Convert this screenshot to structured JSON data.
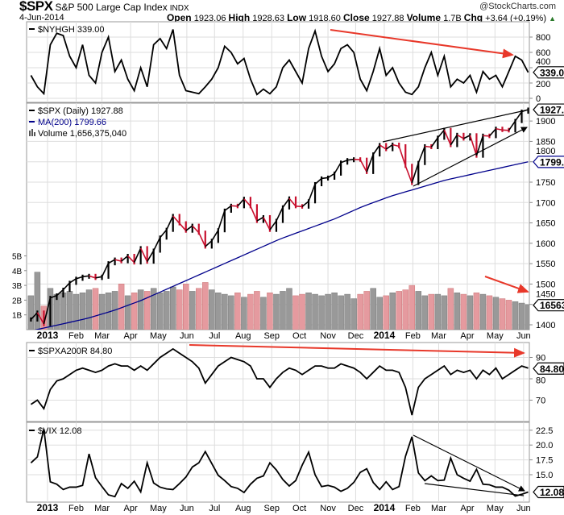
{
  "header": {
    "symbol": "$SPX",
    "name": "S&P 500 Large Cap Index",
    "exchange": "INDX",
    "brand": "@StockCharts.com",
    "date": "4-Jun-2014",
    "open_label": "Open",
    "open": "1923.06",
    "high_label": "High",
    "high": "1928.63",
    "low_label": "Low",
    "low": "1918.60",
    "close_label": "Close",
    "close": "1927.88",
    "volume_label": "Volume",
    "volume": "1.7B",
    "chg_label": "Chg",
    "chg": "+3.64 (+0.19%)",
    "chg_icon": "up-triangle-icon"
  },
  "colors": {
    "price_up": "#000000",
    "price_down": "#c8102e",
    "ma": "#00008b",
    "volume_up": "#999999",
    "volume_down": "#e59a9f",
    "annotation_red": "#e8382a",
    "grid": "#dddddd"
  },
  "chart_data": {
    "type": "line",
    "start_date": "2012-12-14",
    "interval_days": 7,
    "month_labels": [
      "2013",
      "Feb",
      "Mar",
      "Apr",
      "May",
      "Jun",
      "Jul",
      "Aug",
      "Sep",
      "Oct",
      "Nov",
      "Dec",
      "2014",
      "Feb",
      "Mar",
      "Apr",
      "May",
      "Jun"
    ],
    "panels": [
      {
        "id": "nyhgh",
        "legend": "$NYHGH 339.00",
        "last_value": "339.00",
        "yticks": [
          "0",
          "200",
          "400",
          "600",
          "800"
        ],
        "ytick_values": [
          0,
          200,
          400,
          600,
          800
        ],
        "values": [
          300,
          150,
          60,
          700,
          850,
          820,
          550,
          400,
          700,
          300,
          200,
          600,
          800,
          350,
          500,
          250,
          100,
          400,
          150,
          700,
          780,
          650,
          900,
          300,
          100,
          80,
          60,
          150,
          250,
          400,
          680,
          600,
          450,
          520,
          250,
          50,
          120,
          60,
          150,
          400,
          500,
          350,
          200,
          650,
          880,
          550,
          350,
          450,
          650,
          700,
          600,
          250,
          100,
          350,
          650,
          300,
          400,
          200,
          80,
          50,
          150,
          400,
          600,
          300,
          550,
          150,
          250,
          200,
          300,
          80,
          350,
          250,
          300,
          150,
          350,
          550,
          500,
          339
        ]
      },
      {
        "id": "spx",
        "legend": "$SPX (Daily) 1927.88",
        "ma_legend": "MA(200) 1799.66",
        "volume_legend": "Volume 1,656,375,040",
        "last_value": "1927.88",
        "ma_last_value": "1799.66",
        "volume_last_value": "1656375",
        "yticks": [
          "1400",
          "1450",
          "1500",
          "1550",
          "1600",
          "1650",
          "1700",
          "1750",
          "1800",
          "1850",
          "1900"
        ],
        "ytick_values": [
          1400,
          1450,
          1500,
          1550,
          1600,
          1650,
          1700,
          1750,
          1800,
          1850,
          1900
        ],
        "volume_ticks": [
          "1B",
          "2B",
          "3B",
          "4B",
          "5B"
        ],
        "volume_tick_values": [
          1,
          2,
          3,
          4,
          5
        ],
        "values": [
          1413,
          1430,
          1402,
          1466,
          1472,
          1486,
          1503,
          1513,
          1518,
          1520,
          1515,
          1518,
          1551,
          1560,
          1556,
          1569,
          1553,
          1588,
          1555,
          1582,
          1614,
          1633,
          1667,
          1649,
          1631,
          1643,
          1626,
          1592,
          1606,
          1632,
          1680,
          1692,
          1691,
          1709,
          1691,
          1655,
          1664,
          1633,
          1655,
          1688,
          1710,
          1691,
          1690,
          1703,
          1745,
          1759,
          1761,
          1771,
          1798,
          1804,
          1806,
          1805,
          1775,
          1818,
          1841,
          1831,
          1842,
          1838,
          1790,
          1748,
          1797,
          1838,
          1836,
          1859,
          1878,
          1841,
          1866,
          1857,
          1865,
          1815,
          1864,
          1863,
          1881,
          1878,
          1877,
          1900,
          1923,
          1928
        ],
        "ma200": [
          1385,
          1400,
          1415,
          1435,
          1460,
          1490,
          1520,
          1550,
          1580,
          1610,
          1635,
          1660,
          1690,
          1715,
          1735,
          1755,
          1770,
          1785,
          1800
        ],
        "volume_billions": [
          2.3,
          3.9,
          1.6,
          2.8,
          2.4,
          2.5,
          2.6,
          2.4,
          2.5,
          2.7,
          2.8,
          2.4,
          2.5,
          2.6,
          3.1,
          2.3,
          2.5,
          2.7,
          2.6,
          2.8,
          2.5,
          2.6,
          2.9,
          2.7,
          3.1,
          2.6,
          2.8,
          3.2,
          2.7,
          2.5,
          2.4,
          2.3,
          2.5,
          2.2,
          2.4,
          2.6,
          2.2,
          2.5,
          2.4,
          2.6,
          2.8,
          2.3,
          2.4,
          2.5,
          2.4,
          2.3,
          2.4,
          2.5,
          2.3,
          2.4,
          2.1,
          2.4,
          2.6,
          2.8,
          2.2,
          2.3,
          2.5,
          2.6,
          2.7,
          3.0,
          2.6,
          2.3,
          2.4,
          2.4,
          2.3,
          2.8,
          2.5,
          2.4,
          2.3,
          2.5,
          2.4,
          2.3,
          2.2,
          2.1,
          2.0,
          1.9,
          1.8,
          1.7
        ]
      },
      {
        "id": "spxa200r",
        "legend": "$SPXA200R 84.80",
        "last_value": "84.80",
        "yticks": [
          "70",
          "80",
          "90"
        ],
        "ytick_values": [
          70,
          80,
          90
        ],
        "values": [
          68,
          70,
          66,
          75,
          79,
          80,
          82,
          84,
          85,
          84,
          83,
          84,
          86,
          87,
          86,
          86,
          84,
          86,
          84,
          87,
          90,
          92,
          94,
          92,
          90,
          88,
          85,
          78,
          82,
          86,
          88,
          90,
          89,
          88,
          86,
          80,
          80,
          76,
          80,
          83,
          85,
          84,
          82,
          84,
          86,
          86,
          85,
          85,
          87,
          86,
          85,
          83,
          80,
          83,
          86,
          84,
          84,
          83,
          76,
          63,
          76,
          80,
          82,
          84,
          86,
          82,
          84,
          83,
          84,
          80,
          84,
          82,
          85,
          80,
          82,
          84,
          86,
          85
        ]
      },
      {
        "id": "vix",
        "legend": "$VIX 12.08",
        "last_value": "12.08",
        "yticks": [
          "15.0",
          "17.5",
          "20.0",
          "22.5"
        ],
        "ytick_values": [
          15,
          17.5,
          20,
          22.5
        ],
        "values": [
          17,
          18,
          22.7,
          13.8,
          13.4,
          12.5,
          12.9,
          12.9,
          13.2,
          18.5,
          14.5,
          13,
          11.6,
          11.3,
          13.5,
          12.7,
          13.9,
          12.1,
          17.0,
          13.6,
          12.9,
          12.6,
          12.5,
          13.5,
          14.6,
          16.3,
          17.0,
          18.9,
          16.9,
          14.9,
          14.0,
          13.0,
          12.7,
          12.0,
          13.4,
          14.4,
          14.8,
          17.0,
          15.8,
          14.2,
          13.1,
          14.0,
          16.6,
          18.8,
          15.0,
          13.0,
          13.2,
          12.9,
          12.2,
          12.7,
          13.7,
          15.4,
          16.0,
          13.7,
          12.5,
          13.8,
          12.5,
          13.0,
          18.1,
          21.4,
          15.3,
          14.0,
          14.8,
          14.0,
          14.1,
          17.8,
          15.0,
          14.4,
          13.9,
          15.9,
          13.4,
          13.3,
          12.9,
          12.9,
          12.4,
          11.4,
          11.7,
          12.08
        ]
      }
    ]
  }
}
